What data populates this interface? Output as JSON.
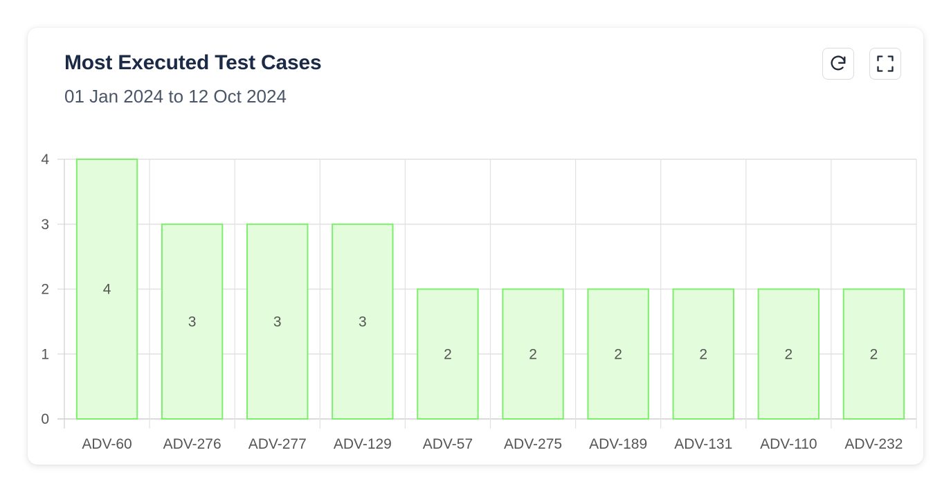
{
  "card": {
    "title": "Most Executed Test Cases",
    "subtitle": "01 Jan 2024 to 12 Oct 2024",
    "actions": [
      {
        "label": "refresh",
        "icon": "refresh-icon"
      },
      {
        "label": "fullscreen",
        "icon": "fullscreen-icon"
      }
    ]
  },
  "colors": {
    "bar_fill": "#e2fcdc",
    "bar_stroke": "#7cf06a",
    "grid": "#e1e1e1",
    "axis": "#cfcfcf",
    "title": "#1b2a47",
    "subtitle": "#4a5568"
  },
  "chart_data": {
    "type": "bar",
    "title": "Most Executed Test Cases",
    "subtitle": "01 Jan 2024 to 12 Oct 2024",
    "xlabel": "",
    "ylabel": "",
    "categories": [
      "ADV-60",
      "ADV-276",
      "ADV-277",
      "ADV-129",
      "ADV-57",
      "ADV-275",
      "ADV-189",
      "ADV-131",
      "ADV-110",
      "ADV-232"
    ],
    "values": [
      4,
      3,
      3,
      3,
      2,
      2,
      2,
      2,
      2,
      2
    ],
    "ylim": [
      0,
      4
    ],
    "yticks": [
      0,
      1,
      2,
      3,
      4
    ],
    "grid": true,
    "data_labels": true,
    "legend": "none"
  }
}
